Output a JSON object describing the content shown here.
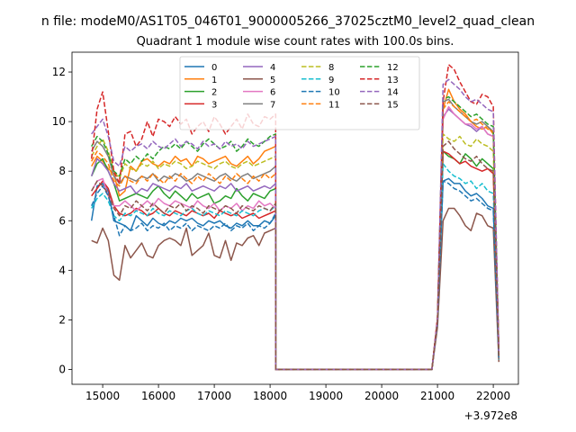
{
  "figure": {
    "suptitle": "n file: modeM0/AS1T05_046T01_9000005266_37025cztM0_level2_quad_clean",
    "x_offset_label": "+3.972e8"
  },
  "chart_data": {
    "type": "line",
    "title": "Quadrant 1 module wise count rates with 100.0s bins.",
    "xlabel": "",
    "ylabel": "",
    "x_offset": 397200000,
    "xlim": [
      14450,
      22450
    ],
    "ylim": [
      -0.6,
      12.8
    ],
    "xticks": [
      15000,
      16000,
      17000,
      18000,
      19000,
      20000,
      21000,
      22000
    ],
    "yticks": [
      0,
      2,
      4,
      6,
      8,
      10,
      12
    ],
    "grid": false,
    "legend_position": "top-center",
    "legend_columns": 4,
    "segments": [
      {
        "start": 14800,
        "step": 100,
        "n": 34
      },
      {
        "start": 18100,
        "step": 100,
        "n": 28
      },
      {
        "start": 20900,
        "step": 100,
        "n": 13
      }
    ],
    "gap_start": 18100,
    "gap_end": 20900,
    "series": [
      {
        "name": "0",
        "color": "#1f77b4",
        "dash": false,
        "seg1": [
          6.0,
          7.4,
          7.5,
          7.2,
          6.0,
          5.9,
          5.8,
          5.6,
          6.2,
          6.0,
          5.8,
          6.1,
          5.9,
          5.8,
          6.0,
          5.9,
          6.1,
          6.0,
          6.1,
          5.9,
          5.8,
          6.0,
          5.9,
          6.0,
          5.8,
          5.7,
          5.9,
          5.8,
          6.0,
          5.8,
          5.8,
          6.0,
          5.9,
          6.2
        ],
        "seg3": [
          0.0,
          2.0,
          7.6,
          7.7,
          7.5,
          7.5,
          7.2,
          7.0,
          7.1,
          6.9,
          6.6,
          6.5,
          0.4
        ]
      },
      {
        "name": "1",
        "color": "#ff7f0e",
        "dash": false,
        "seg1": [
          8.2,
          8.6,
          8.4,
          8.1,
          7.9,
          7.0,
          7.2,
          8.2,
          8.0,
          8.4,
          8.5,
          8.3,
          8.2,
          8.4,
          8.3,
          8.6,
          8.4,
          8.5,
          8.2,
          8.6,
          8.5,
          8.3,
          8.4,
          8.5,
          8.6,
          8.3,
          8.2,
          8.4,
          8.6,
          8.3,
          8.5,
          8.8,
          8.9,
          9.0
        ],
        "seg3": [
          0.0,
          2.0,
          10.5,
          11.3,
          10.8,
          10.5,
          10.3,
          10.0,
          9.8,
          9.7,
          9.8,
          9.5,
          0.6
        ]
      },
      {
        "name": "2",
        "color": "#2ca02c",
        "dash": false,
        "seg1": [
          7.8,
          8.3,
          8.5,
          8.0,
          7.5,
          6.8,
          6.9,
          7.0,
          7.1,
          7.0,
          6.9,
          7.2,
          7.4,
          7.1,
          6.9,
          7.2,
          7.0,
          6.8,
          7.1,
          6.9,
          7.0,
          7.1,
          6.7,
          6.8,
          7.0,
          6.9,
          7.3,
          7.0,
          6.8,
          7.1,
          7.0,
          6.9,
          7.2,
          7.3
        ],
        "seg3": [
          0.0,
          1.9,
          8.8,
          8.6,
          8.5,
          8.3,
          8.7,
          8.5,
          8.2,
          8.5,
          8.3,
          8.1,
          0.5
        ]
      },
      {
        "name": "3",
        "color": "#d62728",
        "dash": false,
        "seg1": [
          7.0,
          7.3,
          7.6,
          7.3,
          6.6,
          6.3,
          6.2,
          6.3,
          6.5,
          6.4,
          6.2,
          6.3,
          6.5,
          6.3,
          6.2,
          6.4,
          6.3,
          6.2,
          6.4,
          6.3,
          6.2,
          6.3,
          6.1,
          6.4,
          6.3,
          6.2,
          6.3,
          6.1,
          6.2,
          6.3,
          6.1,
          6.2,
          6.3,
          6.4
        ],
        "seg3": [
          0.0,
          1.9,
          8.8,
          8.7,
          8.5,
          8.3,
          8.4,
          8.2,
          8.1,
          8.0,
          8.1,
          7.9,
          0.5
        ]
      },
      {
        "name": "4",
        "color": "#9467bd",
        "dash": false,
        "seg1": [
          7.8,
          8.5,
          8.3,
          8.0,
          7.5,
          7.2,
          7.3,
          7.4,
          7.1,
          7.3,
          7.2,
          7.5,
          7.4,
          7.3,
          7.2,
          7.4,
          7.3,
          7.5,
          7.2,
          7.3,
          7.4,
          7.3,
          7.2,
          7.4,
          7.3,
          7.5,
          7.2,
          7.3,
          7.4,
          7.2,
          7.3,
          7.4,
          7.3,
          7.5
        ],
        "seg3": [
          0.0,
          2.0,
          10.2,
          10.5,
          10.3,
          10.1,
          9.9,
          9.8,
          9.6,
          9.8,
          9.5,
          9.4,
          0.6
        ]
      },
      {
        "name": "5",
        "color": "#8c564b",
        "dash": false,
        "seg1": [
          5.2,
          5.1,
          5.7,
          5.2,
          3.8,
          3.6,
          5.0,
          4.5,
          4.8,
          5.1,
          4.6,
          4.5,
          5.0,
          5.2,
          5.3,
          5.2,
          5.0,
          5.7,
          4.6,
          4.8,
          5.0,
          5.5,
          4.6,
          4.5,
          5.2,
          4.4,
          5.1,
          5.0,
          5.3,
          5.4,
          5.0,
          5.5,
          5.6,
          5.7
        ],
        "seg3": [
          0.0,
          1.7,
          6.0,
          6.5,
          6.5,
          6.2,
          5.8,
          5.6,
          6.3,
          6.2,
          5.8,
          5.7,
          0.3
        ]
      },
      {
        "name": "6",
        "color": "#e377c2",
        "dash": false,
        "seg1": [
          7.2,
          7.6,
          7.7,
          7.0,
          6.6,
          6.6,
          6.8,
          6.6,
          6.4,
          6.6,
          6.8,
          6.6,
          6.9,
          6.7,
          6.6,
          6.8,
          6.7,
          6.6,
          6.5,
          6.8,
          6.6,
          6.5,
          6.7,
          6.4,
          6.6,
          6.5,
          6.7,
          6.4,
          6.6,
          6.5,
          6.8,
          6.6,
          6.7,
          6.5
        ],
        "seg3": [
          0.0,
          2.0,
          10.1,
          10.6,
          10.3,
          10.1,
          9.9,
          9.9,
          9.7,
          9.8,
          9.5,
          9.4,
          0.6
        ]
      },
      {
        "name": "7",
        "color": "#7f7f7f",
        "dash": false,
        "seg1": [
          8.8,
          9.2,
          9.0,
          8.6,
          7.8,
          7.5,
          7.8,
          7.7,
          7.6,
          7.8,
          7.7,
          7.9,
          7.6,
          7.8,
          7.7,
          7.9,
          7.8,
          7.6,
          7.7,
          7.9,
          7.8,
          7.7,
          7.6,
          7.8,
          7.9,
          7.7,
          7.6,
          7.8,
          7.9,
          7.7,
          7.8,
          7.9,
          8.0,
          8.2
        ],
        "seg3": [
          0.0,
          2.0,
          10.8,
          10.9,
          10.6,
          10.4,
          10.2,
          10.0,
          9.9,
          10.0,
          9.8,
          9.6,
          0.6
        ]
      },
      {
        "name": "8",
        "color": "#bcbd22",
        "dash": true,
        "seg1": [
          8.6,
          9.0,
          9.3,
          8.8,
          8.0,
          7.7,
          8.3,
          8.1,
          8.0,
          8.3,
          8.2,
          8.4,
          8.1,
          8.3,
          8.2,
          8.4,
          8.3,
          8.1,
          8.2,
          8.4,
          8.3,
          8.2,
          8.1,
          8.3,
          8.4,
          8.2,
          8.1,
          8.3,
          8.4,
          8.2,
          8.3,
          8.4,
          8.5,
          8.6
        ],
        "seg3": [
          0.0,
          2.0,
          9.5,
          9.3,
          9.2,
          9.4,
          9.1,
          9.0,
          9.3,
          9.1,
          9.0,
          8.8,
          0.5
        ]
      },
      {
        "name": "9",
        "color": "#17becf",
        "dash": true,
        "seg1": [
          6.5,
          6.9,
          7.1,
          6.8,
          6.2,
          6.0,
          6.3,
          6.2,
          6.4,
          6.3,
          6.2,
          6.5,
          6.3,
          6.2,
          6.4,
          6.3,
          6.2,
          6.4,
          6.5,
          6.3,
          6.2,
          6.4,
          6.3,
          6.2,
          6.4,
          6.3,
          6.2,
          6.4,
          6.3,
          6.2,
          6.4,
          6.5,
          6.4,
          6.6
        ],
        "seg3": [
          0.0,
          1.9,
          8.3,
          8.0,
          7.8,
          7.7,
          7.5,
          7.6,
          7.3,
          7.5,
          7.2,
          7.1,
          0.4
        ]
      },
      {
        "name": "10",
        "color": "#1f77b4",
        "dash": true,
        "seg1": [
          6.6,
          7.1,
          7.4,
          7.0,
          6.2,
          5.4,
          5.8,
          5.6,
          5.7,
          5.9,
          5.6,
          5.8,
          5.7,
          5.9,
          5.6,
          5.8,
          5.7,
          5.9,
          5.6,
          5.8,
          5.7,
          5.6,
          5.8,
          5.7,
          5.9,
          5.6,
          5.8,
          5.7,
          5.9,
          5.6,
          5.8,
          5.7,
          5.9,
          6.3
        ],
        "seg3": [
          0.0,
          1.9,
          7.6,
          7.5,
          7.3,
          7.2,
          7.0,
          6.8,
          6.9,
          6.7,
          6.5,
          6.4,
          0.4
        ]
      },
      {
        "name": "11",
        "color": "#ff7f0e",
        "dash": true,
        "seg1": [
          8.4,
          8.8,
          8.6,
          8.3,
          7.6,
          7.4,
          7.8,
          7.6,
          7.5,
          7.8,
          7.6,
          7.9,
          7.7,
          7.5,
          7.8,
          7.6,
          7.9,
          7.7,
          7.5,
          7.8,
          7.6,
          7.9,
          7.7,
          7.5,
          7.8,
          7.6,
          7.9,
          7.7,
          7.5,
          7.8,
          7.6,
          7.9,
          7.7,
          7.9
        ],
        "seg3": [
          0.0,
          2.0,
          10.5,
          10.8,
          10.6,
          10.4,
          10.2,
          10.0,
          10.1,
          9.9,
          9.7,
          9.6,
          0.6
        ]
      },
      {
        "name": "12",
        "color": "#2ca02c",
        "dash": true,
        "seg1": [
          9.0,
          9.4,
          9.2,
          8.7,
          8.0,
          7.8,
          8.5,
          8.3,
          8.6,
          8.4,
          8.7,
          8.5,
          8.8,
          9.0,
          8.9,
          9.1,
          8.9,
          9.2,
          9.0,
          8.8,
          9.1,
          9.3,
          9.1,
          8.9,
          9.0,
          9.2,
          8.8,
          9.0,
          9.3,
          9.1,
          9.0,
          9.2,
          9.4,
          9.5
        ],
        "seg3": [
          0.0,
          2.0,
          10.9,
          11.0,
          10.8,
          10.6,
          10.4,
          10.2,
          10.3,
          10.1,
          9.9,
          9.8,
          0.6
        ]
      },
      {
        "name": "13",
        "color": "#d62728",
        "dash": true,
        "seg1": [
          8.5,
          10.5,
          11.2,
          9.6,
          8.0,
          7.5,
          9.5,
          9.6,
          9.0,
          9.3,
          10.0,
          9.4,
          10.1,
          10.0,
          9.8,
          10.2,
          9.9,
          10.1,
          9.5,
          9.8,
          10.0,
          9.6,
          10.2,
          9.9,
          9.5,
          9.8,
          10.1,
          9.7,
          10.3,
          9.9,
          9.8,
          10.2,
          10.1,
          10.3
        ],
        "seg3": [
          0.0,
          2.1,
          10.8,
          12.3,
          12.1,
          11.6,
          11.2,
          10.8,
          10.7,
          11.1,
          11.0,
          10.6,
          0.7
        ]
      },
      {
        "name": "14",
        "color": "#9467bd",
        "dash": true,
        "seg1": [
          9.5,
          9.8,
          10.1,
          9.4,
          8.4,
          8.2,
          9.0,
          8.8,
          9.0,
          9.1,
          8.9,
          9.2,
          9.0,
          8.9,
          9.1,
          9.3,
          9.0,
          9.2,
          9.1,
          8.9,
          9.2,
          9.0,
          9.1,
          8.9,
          9.2,
          9.0,
          9.1,
          8.9,
          9.2,
          9.0,
          9.1,
          9.2,
          9.3,
          9.4
        ],
        "seg3": [
          0.0,
          2.0,
          11.5,
          11.7,
          11.5,
          11.3,
          11.0,
          10.8,
          10.9,
          10.7,
          10.5,
          10.4,
          0.7
        ]
      },
      {
        "name": "15",
        "color": "#8c564b",
        "dash": true,
        "seg1": [
          7.2,
          7.6,
          7.4,
          7.1,
          6.5,
          6.2,
          6.6,
          6.5,
          6.8,
          6.6,
          6.4,
          6.7,
          6.5,
          6.3,
          6.6,
          6.5,
          6.7,
          6.4,
          6.6,
          6.5,
          6.3,
          6.6,
          6.5,
          6.4,
          6.6,
          6.5,
          6.3,
          6.6,
          6.5,
          6.4,
          6.6,
          6.5,
          6.4,
          6.7
        ],
        "seg3": [
          0.0,
          1.9,
          9.0,
          9.2,
          8.9,
          8.7,
          8.5,
          8.4,
          8.6,
          8.3,
          8.1,
          8.0,
          0.5
        ]
      }
    ]
  }
}
